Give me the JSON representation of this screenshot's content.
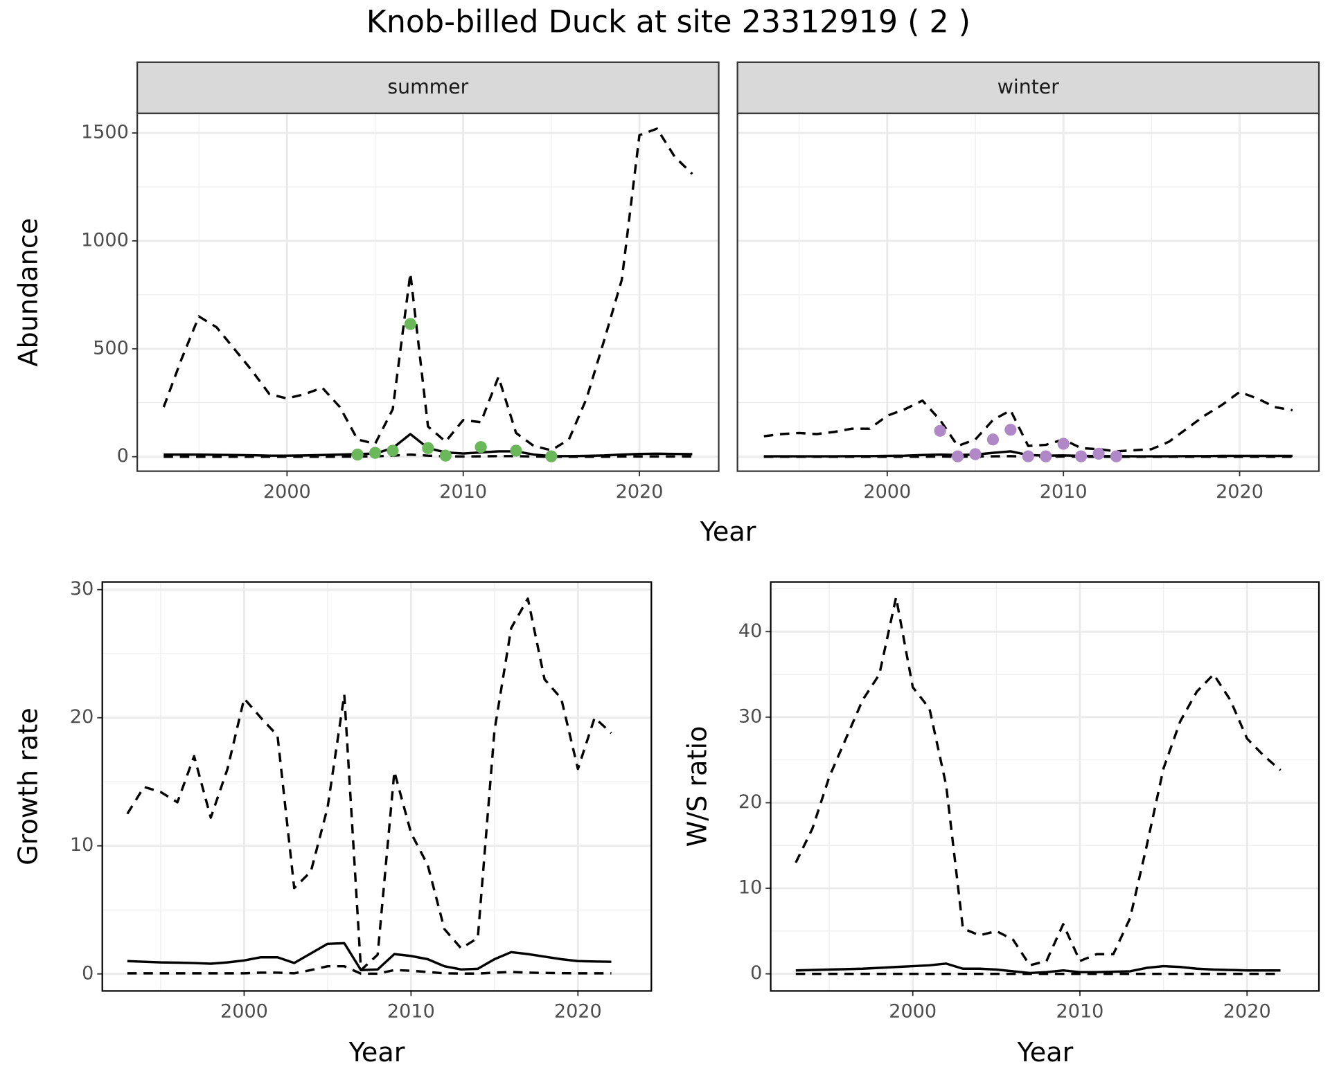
{
  "title": "Knob-billed Duck at site 23312919 ( 2 )",
  "chart_data": [
    {
      "type": "line",
      "facet": "summer",
      "x_label": "Year",
      "y_label": "Abundance",
      "grid": true,
      "xlim": [
        1991.5,
        2024.5
      ],
      "xticks": [
        2000,
        2010,
        2020
      ],
      "ylim": [
        -67,
        1591
      ],
      "yticks": [
        0,
        500,
        1000,
        1500
      ],
      "x": [
        1993,
        1994,
        1995,
        1996,
        1997,
        1998,
        1999,
        2000,
        2001,
        2002,
        2003,
        2004,
        2005,
        2006,
        2007,
        2008,
        2009,
        2010,
        2011,
        2012,
        2013,
        2014,
        2015,
        2016,
        2017,
        2018,
        2019,
        2020,
        2021,
        2022,
        2023
      ],
      "series": [
        {
          "color": "#000000",
          "linestyle": "solid",
          "values": [
            10,
            10,
            10,
            9,
            8,
            7,
            5,
            5,
            6,
            8,
            10,
            12,
            15,
            40,
            105,
            40,
            20,
            15,
            20,
            25,
            25,
            10,
            3,
            3,
            4,
            6,
            10,
            13,
            14,
            13,
            12
          ]
        },
        {
          "color": "#000000",
          "linestyle": "dashed",
          "values": [
            230,
            450,
            650,
            600,
            500,
            400,
            290,
            270,
            290,
            320,
            230,
            80,
            60,
            220,
            850,
            140,
            70,
            170,
            160,
            370,
            110,
            50,
            30,
            80,
            270,
            540,
            820,
            1490,
            1520,
            1390,
            1310
          ]
        },
        {
          "color": "#000000",
          "linestyle": "dashed",
          "values": [
            0,
            0,
            0,
            0,
            0,
            0,
            0,
            0,
            0,
            0,
            0,
            1,
            2,
            5,
            10,
            5,
            2,
            1,
            2,
            3,
            3,
            1,
            0,
            0,
            0,
            0,
            1,
            1,
            1,
            1,
            1
          ]
        }
      ],
      "points": {
        "color": "#6ab85a",
        "x": [
          2004,
          2005,
          2006,
          2007,
          2008,
          2009,
          2011,
          2013,
          2015
        ],
        "values": [
          10,
          18,
          28,
          615,
          40,
          5,
          45,
          28,
          2
        ]
      }
    },
    {
      "type": "line",
      "facet": "winter",
      "grid": true,
      "xlim": [
        1991.5,
        2024.5
      ],
      "xticks": [
        2000,
        2010,
        2020
      ],
      "ylim": [
        -67,
        1591
      ],
      "yticks": [
        0,
        500,
        1000,
        1500
      ],
      "x": [
        1993,
        1994,
        1995,
        1996,
        1997,
        1998,
        1999,
        2000,
        2001,
        2002,
        2003,
        2004,
        2005,
        2006,
        2007,
        2008,
        2009,
        2010,
        2011,
        2012,
        2013,
        2014,
        2015,
        2016,
        2017,
        2018,
        2019,
        2020,
        2021,
        2022,
        2023
      ],
      "series": [
        {
          "color": "#000000",
          "linestyle": "solid",
          "values": [
            2,
            2,
            2,
            2,
            2,
            3,
            3,
            4,
            5,
            8,
            10,
            8,
            10,
            18,
            25,
            8,
            5,
            6,
            4,
            3,
            3,
            2,
            2,
            2,
            3,
            3,
            4,
            4,
            4,
            4,
            4
          ]
        },
        {
          "color": "#000000",
          "linestyle": "dashed",
          "values": [
            95,
            105,
            110,
            105,
            115,
            130,
            130,
            190,
            220,
            260,
            170,
            50,
            80,
            170,
            215,
            50,
            55,
            80,
            40,
            35,
            25,
            30,
            35,
            70,
            130,
            190,
            240,
            300,
            270,
            230,
            215
          ]
        },
        {
          "color": "#000000",
          "linestyle": "dashed",
          "values": [
            0,
            0,
            0,
            0,
            0,
            0,
            0,
            0,
            0,
            0,
            1,
            0,
            1,
            2,
            3,
            0,
            0,
            1,
            0,
            0,
            0,
            0,
            0,
            0,
            0,
            0,
            0,
            0,
            0,
            0,
            0
          ]
        }
      ],
      "points": {
        "color": "#b088c8",
        "x": [
          2003,
          2004,
          2005,
          2006,
          2007,
          2008,
          2009,
          2010,
          2011,
          2012,
          2013
        ],
        "values": [
          120,
          2,
          12,
          80,
          125,
          2,
          2,
          60,
          2,
          14,
          2
        ]
      }
    },
    {
      "type": "line",
      "x_label": "Year",
      "y_label": "Growth rate",
      "grid": true,
      "xlim": [
        1991.5,
        2024.4
      ],
      "xticks": [
        2000,
        2010,
        2020
      ],
      "ylim": [
        -1.33,
        30.6
      ],
      "yticks": [
        0,
        10,
        20,
        30
      ],
      "x": [
        1993,
        1994,
        1995,
        1996,
        1997,
        1998,
        1999,
        2000,
        2001,
        2002,
        2003,
        2004,
        2005,
        2006,
        2007,
        2008,
        2009,
        2010,
        2011,
        2012,
        2013,
        2014,
        2015,
        2016,
        2017,
        2018,
        2019,
        2020,
        2021,
        2022
      ],
      "series": [
        {
          "color": "#000000",
          "linestyle": "solid",
          "values": [
            1,
            0.95,
            0.9,
            0.88,
            0.85,
            0.8,
            0.9,
            1.05,
            1.3,
            1.3,
            0.85,
            1.6,
            2.35,
            2.4,
            0.3,
            0.35,
            1.55,
            1.4,
            1.15,
            0.6,
            0.35,
            0.4,
            1.15,
            1.7,
            1.55,
            1.35,
            1.15,
            1,
            0.97,
            0.95
          ]
        },
        {
          "color": "#000000",
          "linestyle": "dashed",
          "values": [
            12.5,
            14.6,
            14.2,
            13.4,
            17,
            12.2,
            16,
            21.5,
            20,
            18.6,
            6.7,
            8,
            13,
            21.8,
            0.3,
            1.5,
            15.8,
            11,
            8.5,
            3.5,
            2,
            2.8,
            19,
            27,
            29.3,
            23,
            21.5,
            16,
            20,
            18.8
          ]
        },
        {
          "color": "#000000",
          "linestyle": "dashed",
          "values": [
            0.05,
            0.05,
            0.05,
            0.05,
            0.05,
            0.05,
            0.05,
            0.05,
            0.1,
            0.1,
            0.05,
            0.3,
            0.6,
            0.6,
            0.02,
            0.02,
            0.3,
            0.25,
            0.15,
            0.05,
            0.03,
            0.03,
            0.1,
            0.15,
            0.1,
            0.08,
            0.06,
            0.05,
            0.05,
            0.05
          ]
        }
      ]
    },
    {
      "type": "line",
      "x_label": "Year",
      "y_label": "W/S ratio",
      "grid": true,
      "xlim": [
        1991.5,
        2024.3
      ],
      "xticks": [
        2000,
        2010,
        2020
      ],
      "ylim": [
        -2,
        45.8
      ],
      "yticks": [
        0,
        10,
        20,
        30,
        40
      ],
      "x": [
        1993,
        1994,
        1995,
        1996,
        1997,
        1998,
        1999,
        2000,
        2001,
        2002,
        2003,
        2004,
        2005,
        2006,
        2007,
        2008,
        2009,
        2010,
        2011,
        2012,
        2013,
        2014,
        2015,
        2016,
        2017,
        2018,
        2019,
        2020,
        2021,
        2022
      ],
      "series": [
        {
          "color": "#000000",
          "linestyle": "solid",
          "values": [
            0.4,
            0.45,
            0.5,
            0.55,
            0.6,
            0.7,
            0.8,
            0.9,
            1,
            1.2,
            0.6,
            0.6,
            0.5,
            0.3,
            0.1,
            0.2,
            0.4,
            0.2,
            0.2,
            0.25,
            0.3,
            0.7,
            0.9,
            0.8,
            0.6,
            0.5,
            0.45,
            0.4,
            0.4,
            0.4
          ]
        },
        {
          "color": "#000000",
          "linestyle": "dashed",
          "values": [
            13,
            17,
            23,
            27.5,
            32,
            35,
            44,
            33.5,
            31,
            22,
            5.3,
            4.5,
            5,
            4,
            1,
            1.5,
            5.8,
            1.5,
            2.3,
            2.3,
            6.5,
            15,
            24,
            29.5,
            33,
            35,
            32,
            27.5,
            25.5,
            23.8
          ]
        },
        {
          "color": "#000000",
          "linestyle": "dashed",
          "values": [
            0,
            0,
            0,
            0,
            0,
            0,
            0,
            0,
            0,
            0,
            0,
            0,
            0,
            0,
            0,
            0,
            0,
            0,
            0,
            0,
            0,
            0,
            0,
            0,
            0,
            0,
            0,
            0,
            0,
            0
          ]
        }
      ]
    }
  ]
}
